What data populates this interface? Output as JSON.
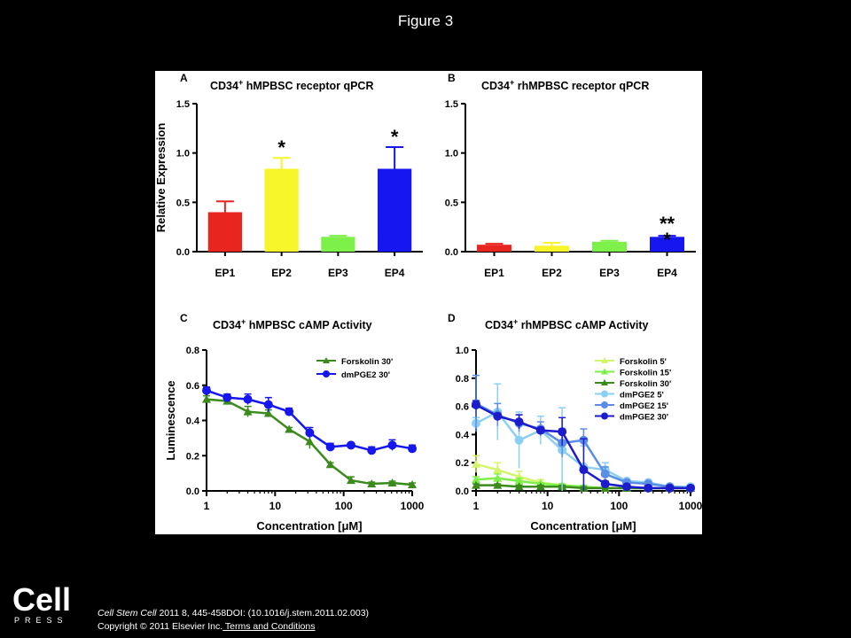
{
  "figure_title": "Figure 3",
  "logo_text": "Cell",
  "logo_subtext": "PRESS",
  "citation": {
    "journal": "Cell Stem Cell",
    "details": " 2011 8, 445-458DOI: (10.1016/j.stem.2011.02.003)",
    "copyright": "Copyright © 2011 Elsevier Inc.",
    "link": " Terms and Conditions"
  },
  "chart_data": [
    {
      "panel": "A",
      "type": "bar",
      "title": "CD34⁺ hMPBSC receptor qPCR",
      "ylabel": "Relative Expression",
      "xlabel": "",
      "ylim": [
        0,
        1.5
      ],
      "yticks": [
        "0.0",
        "0.5",
        "1.0",
        "1.5"
      ],
      "categories": [
        "EP1",
        "EP2",
        "EP3",
        "EP4"
      ],
      "values": [
        0.4,
        0.84,
        0.15,
        0.84
      ],
      "errors": [
        0.11,
        0.11,
        0.01,
        0.22
      ],
      "colors": [
        "#e8251f",
        "#f5f52a",
        "#7df04a",
        "#1616f0"
      ],
      "annotations": [
        "",
        "*",
        "",
        "*"
      ]
    },
    {
      "panel": "B",
      "type": "bar",
      "title": "CD34⁺ rhMPBSC receptor qPCR",
      "ylabel": "",
      "xlabel": "",
      "ylim": [
        0,
        1.5
      ],
      "yticks": [
        "0.0",
        "0.5",
        "1.0",
        "1.5"
      ],
      "categories": [
        "EP1",
        "EP2",
        "EP3",
        "EP4"
      ],
      "values": [
        0.07,
        0.06,
        0.1,
        0.15
      ],
      "errors": [
        0.01,
        0.03,
        0.01,
        0.01
      ],
      "colors": [
        "#e8251f",
        "#f5f52a",
        "#7df04a",
        "#1616f0"
      ],
      "annotations": [
        "",
        "",
        "",
        "**\n*"
      ]
    },
    {
      "panel": "C",
      "type": "line",
      "title": "CD34⁺ hMPBSC cAMP Activity",
      "ylabel": "Luminescence",
      "xlabel": "Concentration [μM]",
      "xscale": "log",
      "xlim": [
        1,
        1000
      ],
      "ylim": [
        0,
        0.8
      ],
      "xticks": [
        "1",
        "10",
        "100",
        "1000"
      ],
      "yticks": [
        "0.0",
        "0.2",
        "0.4",
        "0.6",
        "0.8"
      ],
      "legend": "top-right",
      "series": [
        {
          "name": "Forskolin 30'",
          "color": "#3a8a1c",
          "marker": "triangle",
          "x": [
            1,
            2,
            4,
            8,
            16,
            32,
            64,
            128,
            256,
            512,
            1000
          ],
          "y": [
            0.52,
            0.51,
            0.45,
            0.44,
            0.35,
            0.28,
            0.15,
            0.06,
            0.04,
            0.045,
            0.035
          ],
          "err": [
            0.02,
            0.02,
            0.03,
            0.02,
            0.01,
            0.04,
            0.01,
            0.02,
            0.01,
            0.01,
            0.01
          ]
        },
        {
          "name": "dmPGE2 30'",
          "color": "#1616f0",
          "marker": "circle",
          "x": [
            1,
            2,
            4,
            8,
            16,
            32,
            64,
            128,
            256,
            512,
            1000
          ],
          "y": [
            0.57,
            0.53,
            0.52,
            0.49,
            0.45,
            0.33,
            0.25,
            0.26,
            0.23,
            0.26,
            0.24
          ],
          "err": [
            0.02,
            0.02,
            0.03,
            0.04,
            0.02,
            0.03,
            0.02,
            0.01,
            0.02,
            0.03,
            0.02
          ]
        }
      ]
    },
    {
      "panel": "D",
      "type": "line",
      "title": "CD34⁺ rhMPBSC cAMP Activity",
      "ylabel": "",
      "xlabel": "Concentration [μM]",
      "xscale": "log",
      "xlim": [
        1,
        1000
      ],
      "ylim": [
        0,
        1.0
      ],
      "xticks": [
        "1",
        "10",
        "100",
        "1000"
      ],
      "yticks": [
        "0.0",
        "0.2",
        "0.4",
        "0.6",
        "0.8",
        "1.0"
      ],
      "legend": "top-right",
      "series": [
        {
          "name": "Forskolin 5'",
          "color": "#d4f56a",
          "marker": "triangle",
          "x": [
            1,
            2,
            4,
            8,
            16,
            32,
            64,
            128,
            256,
            512,
            1000
          ],
          "y": [
            0.19,
            0.15,
            0.1,
            0.06,
            0.04,
            0.03,
            0.02,
            0.02,
            0.02,
            0.02,
            0.02
          ],
          "err": [
            0.06,
            0.05,
            0.04,
            0.02,
            0.01,
            0.01,
            0.01,
            0,
            0,
            0,
            0
          ]
        },
        {
          "name": "Forskolin 15'",
          "color": "#7df04a",
          "marker": "triangle",
          "x": [
            1,
            2,
            4,
            8,
            16,
            32,
            64,
            128,
            256,
            512,
            1000
          ],
          "y": [
            0.08,
            0.09,
            0.07,
            0.05,
            0.04,
            0.03,
            0.02,
            0.02,
            0.02,
            0.02,
            0.02
          ],
          "err": [
            0.02,
            0.03,
            0.02,
            0.01,
            0.01,
            0.01,
            0.01,
            0,
            0,
            0,
            0
          ]
        },
        {
          "name": "Forskolin 30'",
          "color": "#3a8a1c",
          "marker": "triangle",
          "x": [
            1,
            2,
            4,
            8,
            16,
            32,
            64,
            128,
            256,
            512,
            1000
          ],
          "y": [
            0.04,
            0.04,
            0.03,
            0.03,
            0.03,
            0.02,
            0.02,
            0.02,
            0.02,
            0.02,
            0.02
          ],
          "err": [
            0.01,
            0.01,
            0.01,
            0.01,
            0.01,
            0.01,
            0,
            0,
            0,
            0,
            0
          ]
        },
        {
          "name": "dmPGE2 5'",
          "color": "#8ccff5",
          "marker": "circle",
          "x": [
            1,
            2,
            4,
            8,
            16,
            32,
            64,
            128,
            256,
            512,
            1000
          ],
          "y": [
            0.48,
            0.56,
            0.36,
            0.43,
            0.29,
            0.17,
            0.15,
            0.07,
            0.06,
            0.03,
            0.03
          ],
          "err": [
            0.04,
            0.2,
            0.2,
            0.1,
            0.3,
            0.15,
            0.05,
            0.01,
            0.01,
            0.01,
            0.01
          ]
        },
        {
          "name": "dmPGE2 15'",
          "color": "#5a8ee6",
          "marker": "circle",
          "x": [
            1,
            2,
            4,
            8,
            16,
            32,
            64,
            128,
            256,
            512,
            1000
          ],
          "y": [
            0.62,
            0.54,
            0.48,
            0.44,
            0.34,
            0.36,
            0.12,
            0.06,
            0.05,
            0.03,
            0.02
          ],
          "err": [
            0.2,
            0.08,
            0.06,
            0.05,
            0.1,
            0.08,
            0.05,
            0.01,
            0.01,
            0.01,
            0.01
          ]
        },
        {
          "name": "dmPGE2 30'",
          "color": "#1c1ccc",
          "marker": "circle",
          "x": [
            1,
            2,
            4,
            8,
            16,
            32,
            64,
            128,
            256,
            512,
            1000
          ],
          "y": [
            0.61,
            0.53,
            0.49,
            0.43,
            0.42,
            0.15,
            0.05,
            0.03,
            0.02,
            0.02,
            0.02
          ],
          "err": [
            0.03,
            0.02,
            0.05,
            0.02,
            0.1,
            0.22,
            0.02,
            0.01,
            0.01,
            0,
            0
          ]
        }
      ]
    }
  ]
}
